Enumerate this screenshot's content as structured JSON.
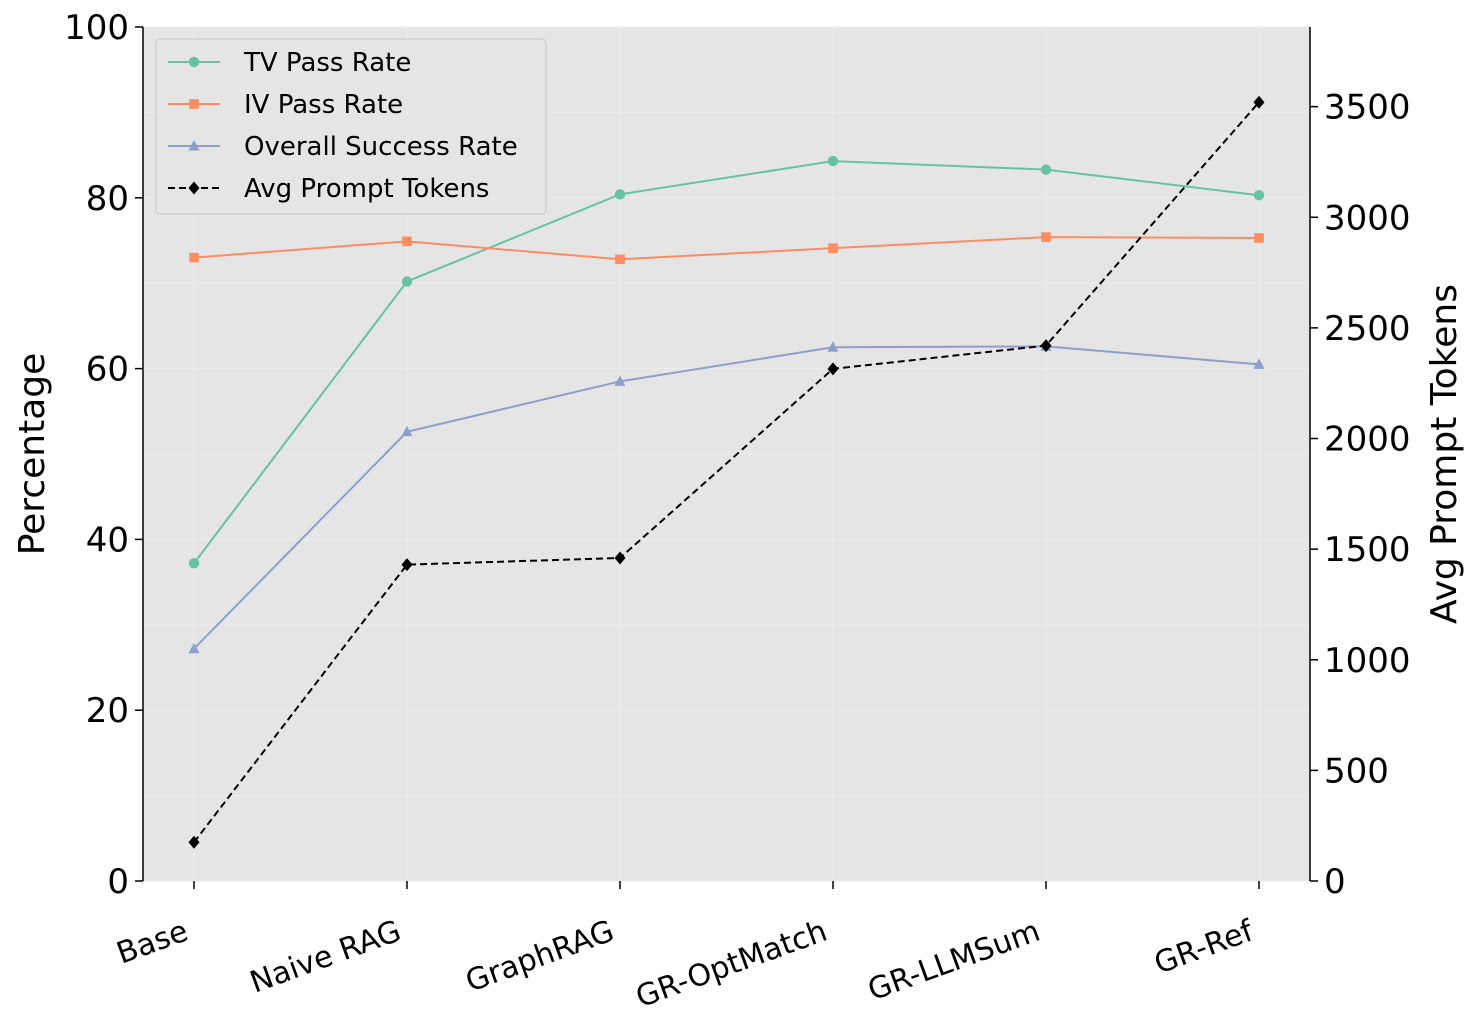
{
  "chart_data": {
    "type": "line",
    "categories": [
      "Base",
      "Naive RAG",
      "GraphRAG",
      "GR-OptMatch",
      "GR-LLMSum",
      "GR-Ref"
    ],
    "series": [
      {
        "name": "TV Pass Rate",
        "axis": "left",
        "color": "#66c2a5",
        "marker": "circle",
        "style": "solid",
        "values": [
          37.2,
          70.2,
          80.4,
          84.3,
          83.3,
          80.3
        ]
      },
      {
        "name": "IV Pass Rate",
        "axis": "left",
        "color": "#fc8d62",
        "marker": "square",
        "style": "solid",
        "values": [
          73.0,
          74.9,
          72.8,
          74.1,
          75.4,
          75.3
        ]
      },
      {
        "name": "Overall Success Rate",
        "axis": "left",
        "color": "#8da0cb",
        "marker": "triangle",
        "style": "solid",
        "values": [
          27.2,
          52.6,
          58.5,
          62.5,
          62.6,
          60.5
        ]
      },
      {
        "name": "Avg Prompt Tokens",
        "axis": "right",
        "color": "#000000",
        "marker": "diamond",
        "style": "dashed",
        "values": [
          175,
          1430,
          1460,
          2315,
          2420,
          3520
        ]
      }
    ],
    "ylabel": "Percentage",
    "ylabel_right": "Avg Prompt Tokens",
    "xlabel": "",
    "ylim": [
      0,
      100
    ],
    "ylim_right": [
      0,
      3860
    ],
    "yticks": [
      0,
      20,
      40,
      60,
      80,
      100
    ],
    "yticks_right": [
      0,
      500,
      1000,
      1500,
      2000,
      2500,
      3000,
      3500
    ],
    "grid": true,
    "background": "#e5e5e5",
    "legend_position": "top-left"
  }
}
